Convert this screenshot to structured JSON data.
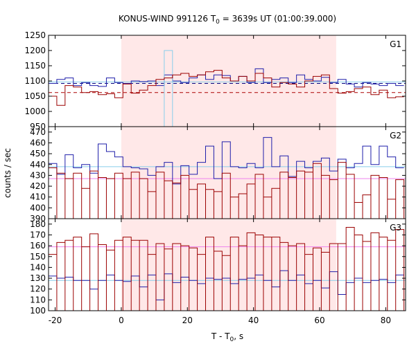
{
  "chart_data": {
    "type": "line",
    "title": {
      "main": "KONUS-WIND 991126 T",
      "sub": "0",
      "rest": " = 3639s UT (01:00:39.000)"
    },
    "xlabel": {
      "main": "T - T",
      "sub": "0",
      "rest": ", s"
    },
    "ylabel": "counts / sec",
    "xlim": [
      -22,
      86
    ],
    "x_ticks": [
      -20,
      0,
      20,
      40,
      60,
      80
    ],
    "x_tick_labels": [
      "-20",
      "0",
      "20",
      "40",
      "60",
      "80"
    ],
    "highlight_interval": [
      0,
      65
    ],
    "bin_edges": [
      -22,
      -19.5,
      -17,
      -14.5,
      -12,
      -9.5,
      -7,
      -4.5,
      -2,
      0.5,
      3,
      5.5,
      8,
      10.5,
      13,
      15.5,
      18,
      20.5,
      23,
      25.5,
      28,
      30.5,
      33,
      35.5,
      38,
      40.5,
      43,
      45.5,
      48,
      50.5,
      53,
      55.5,
      58,
      60.5,
      63,
      65.5,
      68,
      70.5,
      73,
      75.5,
      78,
      80.5,
      83,
      85.5
    ],
    "panels": [
      {
        "name": "G1",
        "ylim": [
          950,
          1250
        ],
        "y_ticks": [
          950,
          1000,
          1050,
          1100,
          1150,
          1200,
          1250
        ],
        "y_tick_labels": [
          "950",
          "1000",
          "1050",
          "1100",
          "1150",
          "1200",
          "1250"
        ],
        "hlines": [
          {
            "value": 1097,
            "color": "#87CEEB",
            "style": "solid"
          },
          {
            "value": 1092,
            "color": "#000080",
            "style": "dashed"
          },
          {
            "value": 1062,
            "color": "#AA0000",
            "style": "dashed"
          }
        ],
        "series": [
          {
            "color": "#1E1EAA",
            "values": [
              1092,
              1105,
              1110,
              1085,
              1095,
              1085,
              1082,
              1110,
              1095,
              1092,
              1100,
              1098,
              1100,
              1085,
              1120,
              1100,
              1095,
              1110,
              1120,
              1105,
              1120,
              1118,
              1100,
              1115,
              1095,
              1140,
              1095,
              1105,
              1110,
              1095,
              1120,
              1105,
              1100,
              1112,
              1095,
              1105,
              1090,
              1080,
              1095,
              1090,
              1085,
              1092,
              1085
            ]
          },
          {
            "color": "#87CEEB",
            "values": [
              null,
              null,
              null,
              null,
              null,
              null,
              null,
              null,
              null,
              null,
              null,
              null,
              null,
              null,
              1200,
              null,
              null,
              null,
              null,
              null,
              null,
              null,
              null,
              null,
              null,
              null,
              null,
              null,
              null,
              null,
              null,
              null,
              null,
              null,
              null,
              null,
              null,
              null,
              null,
              null,
              null,
              null,
              null
            ]
          },
          {
            "color": "#9B0000",
            "values": [
              1050,
              1020,
              1085,
              1080,
              1062,
              1065,
              1055,
              1058,
              1045,
              1090,
              1060,
              1070,
              1085,
              1105,
              1110,
              1120,
              1125,
              1115,
              1120,
              1130,
              1135,
              1110,
              1100,
              1115,
              1100,
              1125,
              1110,
              1080,
              1095,
              1090,
              1080,
              1100,
              1115,
              1120,
              1075,
              1060,
              1065,
              1075,
              1080,
              1055,
              1070,
              1045,
              1048
            ]
          }
        ]
      },
      {
        "name": "G2",
        "ylim": [
          390,
          475
        ],
        "y_ticks": [
          390,
          400,
          410,
          420,
          430,
          440,
          450,
          460,
          470
        ],
        "y_tick_labels": [
          "390",
          "400",
          "410",
          "420",
          "430",
          "440",
          "450",
          "460",
          "470"
        ],
        "hlines": [
          {
            "value": 438,
            "color": "#87CEEB",
            "style": "solid"
          },
          {
            "value": 427,
            "color": "#EE82EE",
            "style": "solid"
          }
        ],
        "series": [
          {
            "color": "#1E1EAA",
            "values": [
              441,
              431,
              449,
              437,
              440,
              432,
              459,
              452,
              447,
              438,
              437,
              436,
              430,
              438,
              442,
              422,
              439,
              431,
              442,
              457,
              427,
              461,
              438,
              437,
              441,
              437,
              465,
              438,
              448,
              429,
              443,
              437,
              443,
              446,
              434,
              445,
              437,
              441,
              457,
              440,
              457,
              447,
              437
            ]
          },
          {
            "color": "#9B0000",
            "values": [
              437,
              432,
              427,
              432,
              418,
              434,
              428,
              427,
              432,
              427,
              433,
              427,
              415,
              433,
              425,
              423,
              430,
              417,
              422,
              417,
              415,
              432,
              410,
              413,
              422,
              431,
              410,
              418,
              433,
              428,
              434,
              433,
              441,
              430,
              426,
              442,
              431,
              405,
              412,
              430,
              428,
              408,
              426
            ]
          }
        ]
      },
      {
        "name": "G3",
        "ylim": [
          100,
          185
        ],
        "y_ticks": [
          100,
          110,
          120,
          130,
          140,
          150,
          160,
          170,
          180
        ],
        "y_tick_labels": [
          "100",
          "110",
          "120",
          "130",
          "140",
          "150",
          "160",
          "170",
          "180"
        ],
        "hlines": [
          {
            "value": 128,
            "color": "#87CEEB",
            "style": "solid"
          },
          {
            "value": 159,
            "color": "#EE82EE",
            "style": "solid"
          }
        ],
        "series": [
          {
            "color": "#1E1EAA",
            "values": [
              132,
              130,
              131,
              128,
              128,
              120,
              128,
              133,
              128,
              127,
              132,
              122,
              133,
              110,
              134,
              126,
              131,
              128,
              125,
              130,
              129,
              130,
              125,
              129,
              130,
              133,
              128,
              122,
              137,
              128,
              133,
              125,
              128,
              121,
              136,
              115,
              126,
              130,
              126,
              128,
              129,
              126,
              133
            ]
          },
          {
            "color": "#9B0000",
            "values": [
              152,
              163,
              165,
              168,
              159,
              171,
              161,
              156,
              165,
              168,
              165,
              165,
              152,
              162,
              157,
              162,
              160,
              158,
              152,
              168,
              155,
              151,
              168,
              160,
              172,
              170,
              168,
              168,
              163,
              160,
              162,
              152,
              158,
              154,
              162,
              162,
              177,
              170,
              164,
              172,
              168,
              165,
              175
            ]
          }
        ]
      }
    ]
  }
}
